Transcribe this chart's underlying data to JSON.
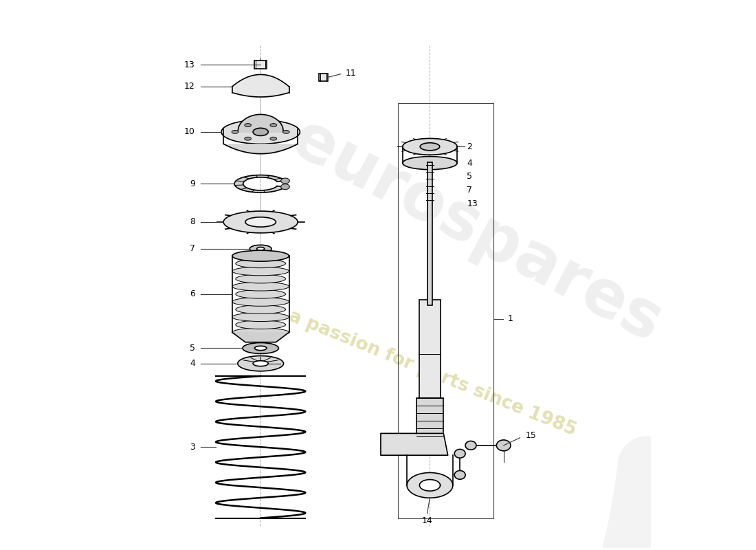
{
  "bg_color": "#ffffff",
  "line_color": "#000000",
  "fig_width": 11.0,
  "fig_height": 8.0,
  "label_fontsize": 9,
  "dpi": 100
}
